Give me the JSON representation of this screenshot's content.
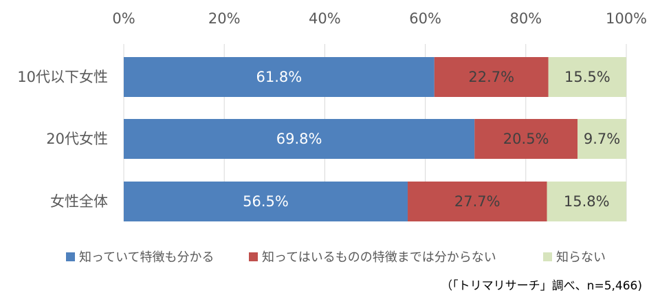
{
  "chart_data": {
    "type": "bar",
    "orientation": "horizontal",
    "stacked": "percent",
    "categories": [
      "10代以下女性",
      "20代女性",
      "女性全体"
    ],
    "series": [
      {
        "name": "知っていて特徴も分かる",
        "values": [
          61.8,
          69.8,
          56.5
        ],
        "color": "#4F81BD",
        "label_color": "#ffffff"
      },
      {
        "name": "知ってはいるものの特徴までは分からない",
        "values": [
          22.7,
          20.5,
          27.7
        ],
        "color": "#C0504D",
        "label_color": "#404040"
      },
      {
        "name": "知らない",
        "values": [
          15.5,
          9.7,
          15.8
        ],
        "color": "#D7E4BD",
        "label_color": "#404040"
      }
    ],
    "xaxis_ticks": [
      "0%",
      "20%",
      "40%",
      "60%",
      "80%",
      "100%"
    ],
    "xlim": [
      0,
      100
    ],
    "grid": true,
    "legend_position": "bottom"
  },
  "source_note": "（「トリマリサーチ」調べ、n=5,466)"
}
